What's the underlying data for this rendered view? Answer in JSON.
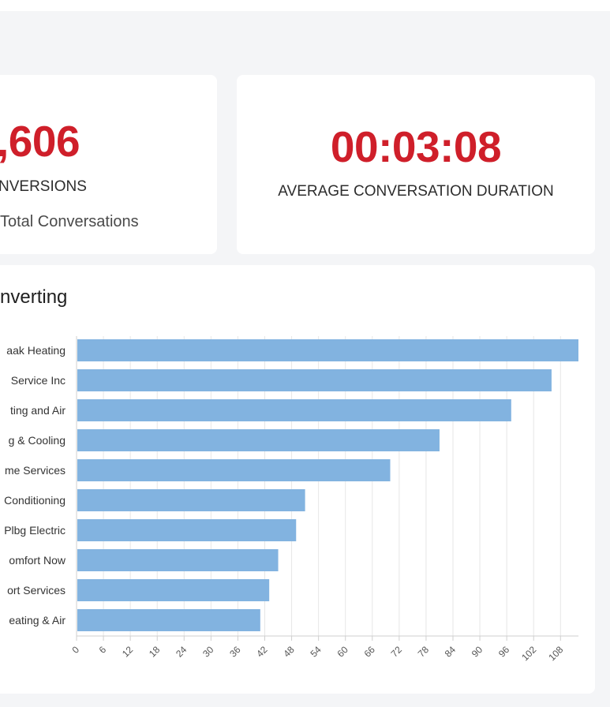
{
  "stats": {
    "conversions": {
      "value": ",606",
      "label": "NVERSIONS",
      "sublabel": "Total Conversations"
    },
    "duration": {
      "value": "00:03:08",
      "label": "AVERAGE CONVERSATION DURATION"
    }
  },
  "colors": {
    "accent_red": "#cf1f2a",
    "bar_blue": "#82b3e0",
    "background": "#f4f5f7"
  },
  "chart": {
    "title": "nverting"
  },
  "chart_data": {
    "type": "bar",
    "orientation": "horizontal",
    "title": "nverting",
    "categories": [
      "aak Heating",
      "Service Inc",
      "ting and Air",
      "g & Cooling",
      "me Services",
      "Conditioning",
      "Plbg Electric",
      "omfort Now",
      "ort Services",
      "eating & Air"
    ],
    "values": [
      112,
      106,
      97,
      81,
      70,
      51,
      49,
      45,
      43,
      41
    ],
    "xlim": [
      0,
      112
    ],
    "xticks": [
      0,
      6,
      12,
      18,
      24,
      30,
      36,
      42,
      48,
      54,
      60,
      66,
      72,
      78,
      84,
      90,
      96,
      102,
      108
    ],
    "grid": true,
    "legend": "none"
  }
}
